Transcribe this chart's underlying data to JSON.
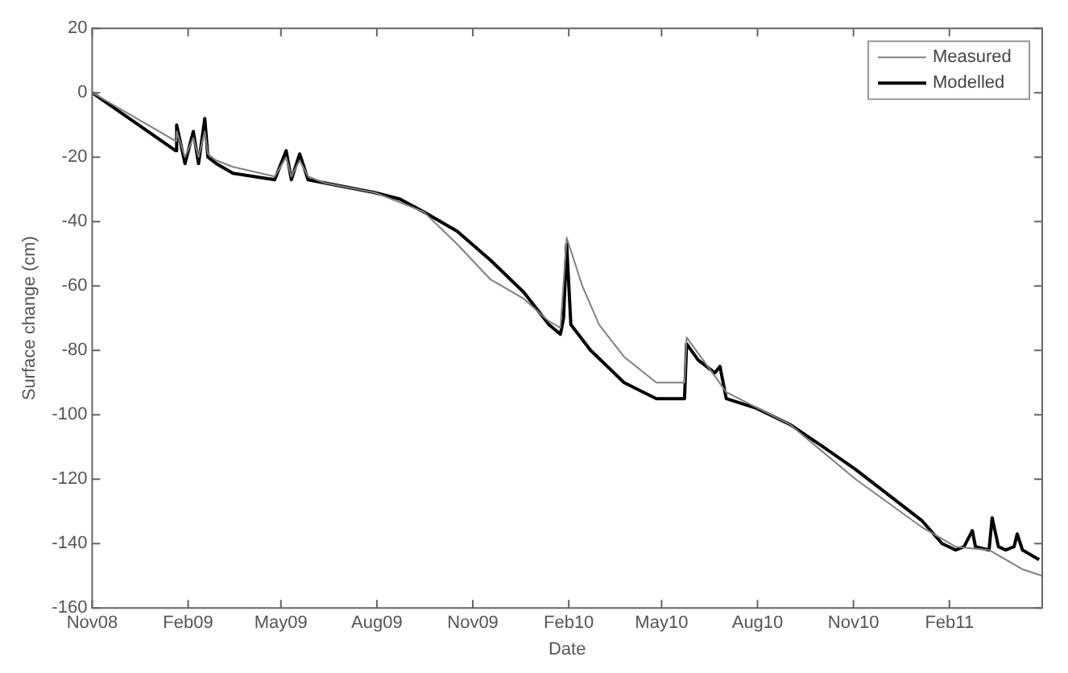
{
  "chart_data": {
    "type": "line",
    "xlabel": "Date",
    "ylabel": "Surface change (cm)",
    "xlim": [
      "2008-11-01",
      "2011-05-01"
    ],
    "xticks": [
      {
        "value": "2008-11-01",
        "label": "Nov08"
      },
      {
        "value": "2009-02-01",
        "label": "Feb09"
      },
      {
        "value": "2009-05-01",
        "label": "May09"
      },
      {
        "value": "2009-08-01",
        "label": "Aug09"
      },
      {
        "value": "2009-11-01",
        "label": "Nov09"
      },
      {
        "value": "2010-02-01",
        "label": "Feb10"
      },
      {
        "value": "2010-05-01",
        "label": "May10"
      },
      {
        "value": "2010-08-01",
        "label": "Aug10"
      },
      {
        "value": "2010-11-01",
        "label": "Nov10"
      },
      {
        "value": "2011-02-01",
        "label": "Feb11"
      }
    ],
    "ylim": [
      -160,
      20
    ],
    "yticks": [
      -160,
      -140,
      -120,
      -100,
      -80,
      -60,
      -40,
      -20,
      0,
      20
    ],
    "grid": false,
    "legend": "top right",
    "marker": "none",
    "line_style": "solid",
    "series": [
      {
        "name": "Measured",
        "color": "#808080",
        "x": [
          "2008-11-01",
          "2009-01-20",
          "2009-01-21",
          "2009-01-29",
          "2009-02-06",
          "2009-02-11",
          "2009-02-17",
          "2009-02-20",
          "2009-02-28",
          "2009-03-16",
          "2009-04-25",
          "2009-05-06",
          "2009-05-11",
          "2009-05-19",
          "2009-05-27",
          "2009-06-12",
          "2009-07-30",
          "2009-08-23",
          "2009-09-15",
          "2009-10-17",
          "2009-11-18",
          "2009-12-20",
          "2010-01-13",
          "2010-01-24",
          "2010-01-30",
          "2010-02-14",
          "2010-03-02",
          "2010-03-26",
          "2010-04-26",
          "2010-05-23",
          "2010-05-25",
          "2010-06-21",
          "2010-07-02",
          "2010-09-01",
          "2010-11-03",
          "2011-01-06",
          "2011-02-07",
          "2011-03-11",
          "2011-03-27",
          "2011-04-12",
          "2011-05-01"
        ],
        "values": [
          0,
          -15,
          -12,
          -20,
          -14,
          -20,
          -12,
          -19,
          -21,
          -23,
          -26,
          -20,
          -26,
          -21,
          -26,
          -28,
          -31,
          -34,
          -37,
          -47,
          -58,
          -64,
          -71,
          -73,
          -45,
          -60,
          -72,
          -82,
          -90,
          -90,
          -76,
          -88,
          -93,
          -103,
          -120,
          -135,
          -141,
          -142,
          -145,
          -148,
          -150
        ]
      },
      {
        "name": "Modelled",
        "color": "#000000",
        "x": [
          "2008-11-01",
          "2009-01-20",
          "2009-01-21",
          "2009-01-29",
          "2009-02-06",
          "2009-02-11",
          "2009-02-17",
          "2009-02-20",
          "2009-02-28",
          "2009-03-16",
          "2009-04-25",
          "2009-05-06",
          "2009-05-11",
          "2009-05-19",
          "2009-05-27",
          "2009-06-12",
          "2009-07-30",
          "2009-08-23",
          "2009-09-15",
          "2009-10-17",
          "2009-11-18",
          "2009-12-20",
          "2010-01-13",
          "2010-01-24",
          "2010-01-27",
          "2010-01-30",
          "2010-02-03",
          "2010-02-22",
          "2010-03-26",
          "2010-04-26",
          "2010-05-23",
          "2010-05-25",
          "2010-06-05",
          "2010-06-21",
          "2010-06-26",
          "2010-07-02",
          "2010-07-31",
          "2010-09-01",
          "2010-10-03",
          "2010-11-03",
          "2010-12-05",
          "2011-01-06",
          "2011-01-25",
          "2011-02-07",
          "2011-02-15",
          "2011-02-23",
          "2011-02-26",
          "2011-03-11",
          "2011-03-14",
          "2011-03-20",
          "2011-03-27",
          "2011-04-04",
          "2011-04-07",
          "2011-04-12",
          "2011-04-28"
        ],
        "values": [
          0,
          -18,
          -10,
          -22,
          -12,
          -22,
          -8,
          -20,
          -22,
          -25,
          -27,
          -18,
          -27,
          -19,
          -27,
          -28,
          -31,
          -33,
          -37,
          -43,
          -52,
          -62,
          -72,
          -75,
          -70,
          -47,
          -72,
          -80,
          -90,
          -95,
          -95,
          -78,
          -83,
          -87,
          -85,
          -95,
          -98,
          -103,
          -110,
          -117,
          -125,
          -133,
          -140,
          -142,
          -141,
          -136,
          -141,
          -142,
          -132,
          -141,
          -142,
          -141,
          -137,
          -142,
          -145
        ]
      }
    ]
  }
}
